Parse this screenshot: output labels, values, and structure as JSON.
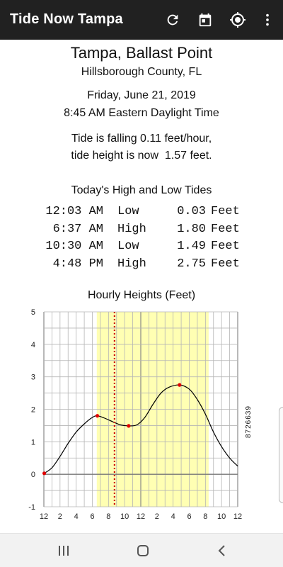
{
  "appbar": {
    "title": "Tide Now Tampa",
    "icons": [
      "refresh-icon",
      "calendar-icon",
      "my-location-icon",
      "more-vert-icon"
    ]
  },
  "location": {
    "name": "Tampa, Ballast Point",
    "county": "Hillsborough County, FL"
  },
  "datetime": {
    "date": "Friday, June 21, 2019",
    "time": "8:45 AM Eastern Daylight Time"
  },
  "status": {
    "line1": "Tide is falling 0.11 feet/hour,",
    "line2": "tide height is now  1.57 feet."
  },
  "tides": {
    "heading": "Today's High and Low Tides",
    "rows": [
      {
        "time": "12:03 AM",
        "type": "Low",
        "value": "0.03",
        "unit": "Feet"
      },
      {
        "time": "6:37 AM",
        "type": "High",
        "value": "1.80",
        "unit": "Feet"
      },
      {
        "time": "10:30 AM",
        "type": "Low",
        "value": "1.49",
        "unit": "Feet"
      },
      {
        "time": "4:48 PM",
        "type": "High",
        "value": "2.75",
        "unit": "Feet"
      }
    ]
  },
  "chart_data": {
    "type": "line",
    "title": "Hourly Heights (Feet)",
    "xlabel": "",
    "ylabel": "",
    "xlim": [
      0,
      24
    ],
    "ylim": [
      -1,
      5
    ],
    "y_ticks": [
      "5",
      "4",
      "3",
      "2",
      "1",
      "0",
      "-1"
    ],
    "x_ticks": [
      "12",
      "2",
      "4",
      "6",
      "8",
      "10",
      "12",
      "2",
      "4",
      "6",
      "8",
      "10",
      "12"
    ],
    "series": [
      {
        "x": [
          0.05,
          1,
          2,
          3,
          4,
          5,
          6,
          6.62,
          7.5,
          8.5,
          9.5,
          10.5,
          11.5,
          12.5,
          13.5,
          14.5,
          15.5,
          16.8,
          18,
          19,
          20,
          21,
          22,
          23,
          24
        ],
        "y": [
          0.03,
          0.2,
          0.55,
          0.95,
          1.3,
          1.55,
          1.75,
          1.8,
          1.73,
          1.62,
          1.52,
          1.49,
          1.52,
          1.75,
          2.15,
          2.5,
          2.68,
          2.75,
          2.62,
          2.3,
          1.85,
          1.3,
          0.85,
          0.5,
          0.25
        ]
      }
    ],
    "extrema": [
      {
        "x": 0.05,
        "y": 0.03
      },
      {
        "x": 6.62,
        "y": 1.8
      },
      {
        "x": 10.5,
        "y": 1.49
      },
      {
        "x": 16.8,
        "y": 2.75
      }
    ],
    "daylight_range": [
      6.55,
      20.4
    ],
    "current_time": 8.75,
    "colors": {
      "daylight": "#ffffb3",
      "curve": "#000000",
      "marker": "#e00000",
      "now_line": "#cc0000",
      "grid": "#b5b5b5"
    },
    "grid": true,
    "station_id": "8726639"
  },
  "navbar": {
    "icons": [
      "recent-apps-icon",
      "home-icon",
      "back-icon"
    ]
  }
}
